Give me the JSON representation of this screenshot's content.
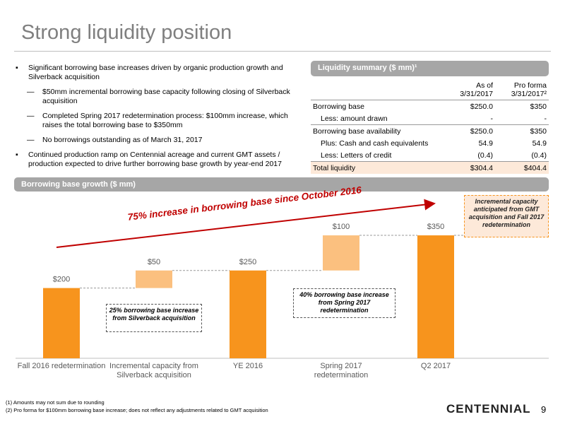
{
  "title": "Strong liquidity position",
  "bullets": [
    {
      "text": "Significant borrowing base increases driven by organic production growth and Silverback acquisition",
      "subs": [
        "$50mm incremental borrowing base capacity following closing of Silverback acquisition",
        "Completed Spring 2017 redetermination process: $100mm increase, which raises the total borrowing base to $350mm",
        "No borrowings outstanding as of March 31, 2017"
      ]
    },
    {
      "text": "Continued production ramp on Centennial acreage and current GMT assets / production expected to drive further borrowing base growth by year-end 2017",
      "subs": []
    }
  ],
  "liquidity_table": {
    "title": "Liquidity summary ($ mm)¹",
    "columns": [
      [
        "As of",
        "3/31/2017"
      ],
      [
        "Pro forma",
        "3/31/2017²"
      ]
    ],
    "rows": [
      [
        "Borrowing base",
        "$250.0",
        "$350"
      ],
      [
        "Less: amount drawn",
        "-",
        "-"
      ],
      [
        "Borrowing base availability",
        "$250.0",
        "$350"
      ],
      [
        "Plus: Cash and cash equivalents",
        "54.9",
        "54.9"
      ],
      [
        "Less: Letters of credit",
        "(0.4)",
        "(0.4)"
      ],
      [
        "Total liquidity",
        "$304.4",
        "$404.4"
      ]
    ]
  },
  "chart_data": {
    "type": "waterfall",
    "title": "Borrowing base growth ($ mm)",
    "categories": [
      "Fall 2016 redetermination",
      "Incremental capacity from Silverback acquisition",
      "YE 2016",
      "Spring 2017 redetermination",
      "Q2 2017"
    ],
    "values": [
      200,
      50,
      250,
      100,
      350
    ],
    "value_labels": [
      "$200",
      "$50",
      "$250",
      "$100",
      "$350"
    ],
    "bar_kinds": [
      "total",
      "increment",
      "total",
      "increment",
      "total"
    ],
    "colors": {
      "total": "#f7941d",
      "increment": "#fbc07f"
    },
    "annotations": {
      "arrow": "75% increase in borrowing base since October 2016",
      "silverback": "25% borrowing base increase from Silverback acquisition",
      "spring": "40% borrowing base increase from Spring 2017 redetermination",
      "gmt": "Incremental capacity anticipated from GMT acquisition and Fall 2017 redetermination"
    }
  },
  "footnotes": [
    "(1)   Amounts may not sum due to rounding",
    "(2)   Pro forma for $100mm borrowing base increase; does not reflect any adjustments related to GMT acquisition"
  ],
  "logo": "CENTENNIAL",
  "page_number": "9"
}
